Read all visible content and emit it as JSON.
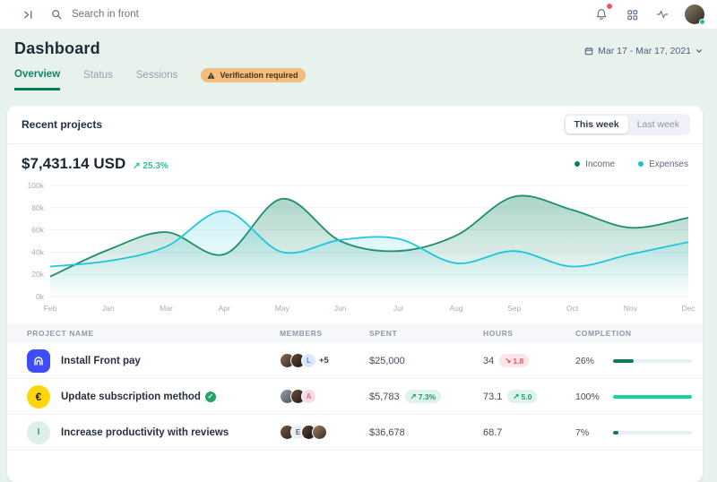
{
  "topbar": {
    "search_placeholder": "Search in front"
  },
  "header": {
    "title": "Dashboard",
    "date_range": "Mar 17 - Mar 17, 2021"
  },
  "tabs": [
    {
      "label": "Overview",
      "active": true
    },
    {
      "label": "Status",
      "active": false
    },
    {
      "label": "Sessions",
      "active": false
    }
  ],
  "verification_badge": "Verification required",
  "card": {
    "title": "Recent projects",
    "toggle": {
      "active": "This week",
      "inactive": "Last week"
    },
    "total": "$7,431.14 USD",
    "growth": "25.3%",
    "legend": [
      {
        "label": "Income",
        "color": "#0a7f5c"
      },
      {
        "label": "Expenses",
        "color": "#17c3d9"
      }
    ]
  },
  "icons": {
    "trend_up": "↗",
    "trend_down": "↘"
  },
  "colors": {
    "accent_green": "#0c7a57",
    "bright_green": "#14d39e",
    "cyan": "#1ec6dc",
    "badge_orange": "#f3bd7d",
    "alert_red": "#f4526a"
  },
  "chart_data": {
    "type": "area",
    "title": "Income vs Expenses (weekly)",
    "x": [
      "Feb",
      "Jan",
      "Mar",
      "Apr",
      "May",
      "Jun",
      "Jul",
      "Aug",
      "Sep",
      "Oct",
      "Nov",
      "Dec"
    ],
    "series": [
      {
        "name": "Income",
        "color": "#1e8e6e",
        "fill": "rgba(30,142,110,0.32)",
        "values": [
          18,
          42,
          58,
          38,
          88,
          50,
          41,
          55,
          90,
          78,
          62,
          71
        ]
      },
      {
        "name": "Expenses",
        "color": "#1ec6dc",
        "fill": "rgba(30,198,220,0.14)",
        "values": [
          27,
          32,
          45,
          77,
          40,
          51,
          52,
          30,
          41,
          27,
          38,
          49
        ]
      }
    ],
    "ylim": [
      0,
      100
    ],
    "yticks": [
      "0k",
      "20k",
      "40k",
      "60k",
      "80k",
      "100k"
    ],
    "grid": true,
    "legend_position": "top-right"
  },
  "table": {
    "columns": [
      "PROJECT NAME",
      "MEMBERS",
      "SPENT",
      "HOURS",
      "COMPLETION"
    ],
    "rows": [
      {
        "icon": {
          "kind": "square",
          "bg": "#3d4ef7",
          "glyph": "home"
        },
        "name": "Install Front pay",
        "verified": false,
        "members": [
          {
            "photo": [
              "#8d6a50",
              "#33271f"
            ]
          },
          {
            "photo": [
              "#5d4637",
              "#1f1812"
            ]
          },
          {
            "initial": "L",
            "bg": "#d8e8fd",
            "fg": "#4d86f8"
          }
        ],
        "more": "+5",
        "spent": "$25,000",
        "spent_badge": null,
        "hours": "34",
        "hours_badge": {
          "dir": "down",
          "text": "1.8"
        },
        "completion": "26%",
        "pct": 26,
        "bar": "#0d7c5d"
      },
      {
        "icon": {
          "kind": "circle",
          "bg": "#ffd60a",
          "glyph": "coin"
        },
        "name": "Update subscription method",
        "verified": true,
        "members": [
          {
            "photo": [
              "#9aa0a8",
              "#4a4f55"
            ]
          },
          {
            "photo": [
              "#6b4a3a",
              "#241a14"
            ]
          },
          {
            "initial": "A",
            "bg": "#fbdce6",
            "fg": "#ee5f8e"
          }
        ],
        "more": null,
        "spent": "$5,783",
        "spent_badge": {
          "dir": "up",
          "text": "7.3%"
        },
        "hours": "73.1",
        "hours_badge": {
          "dir": "up",
          "text": "5.0"
        },
        "completion": "100%",
        "pct": 100,
        "bar": "#14d39e"
      },
      {
        "icon": {
          "kind": "circle",
          "bg": "#ddefe7",
          "glyph": "letter",
          "letter": "I",
          "fg": "#2f9c7c"
        },
        "name": "Increase productivity with reviews",
        "verified": false,
        "members": [
          {
            "photo": [
              "#7a5a44",
              "#2b2018"
            ]
          },
          {
            "initial": "E",
            "bg": "#e9edf2",
            "fg": "#5c6673"
          },
          {
            "photo": [
              "#584538",
              "#17110d"
            ]
          },
          {
            "photo": [
              "#9b7c5f",
              "#3c2f24"
            ]
          }
        ],
        "more": null,
        "spent": "$36,678",
        "spent_badge": null,
        "hours": "68.7",
        "hours_badge": null,
        "completion": "7%",
        "pct": 7,
        "bar": "#0d7c5d"
      }
    ]
  }
}
